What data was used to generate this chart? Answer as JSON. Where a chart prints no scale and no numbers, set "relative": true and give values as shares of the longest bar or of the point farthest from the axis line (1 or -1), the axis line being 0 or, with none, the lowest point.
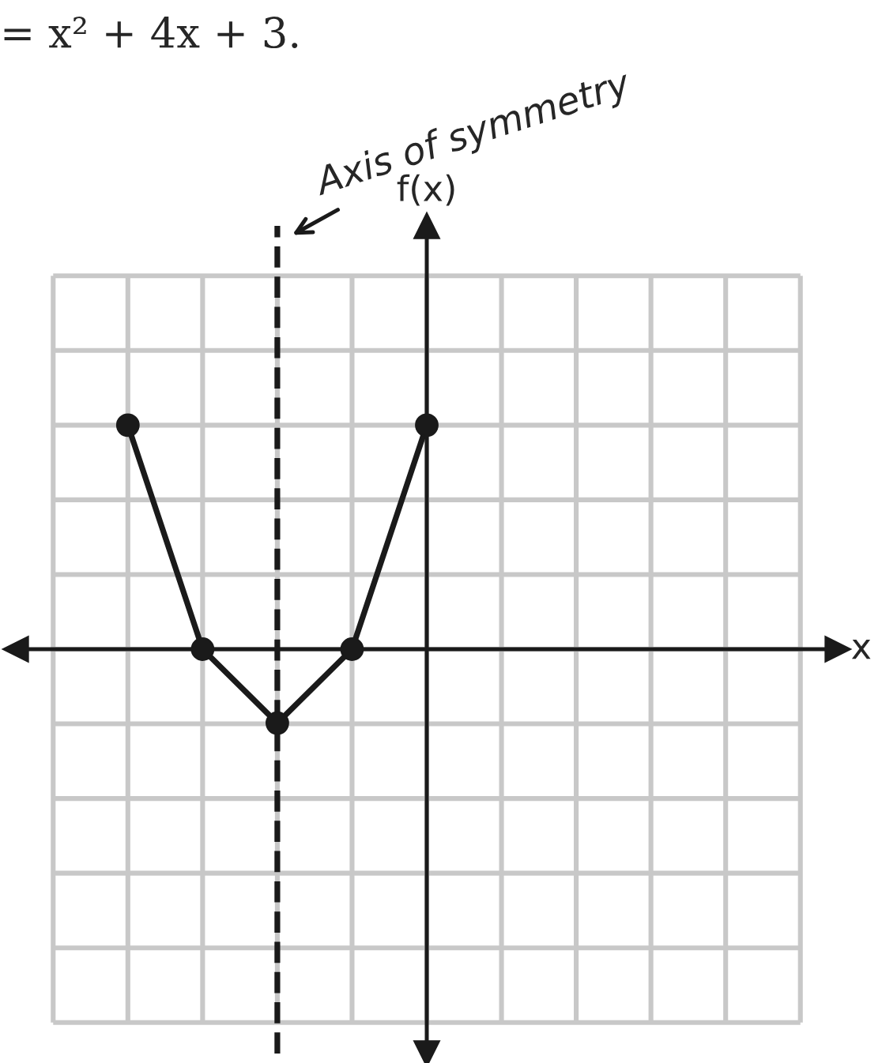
{
  "chart_data": {
    "type": "line",
    "title": "= x² + 4x + 3.",
    "annotations": [
      "x",
      "f(x)",
      "Axis of symmetry"
    ],
    "categories": [
      null,
      null,
      null,
      null,
      null
    ],
    "relative": true,
    "series": [
      {
        "color": "#1a1a1a",
        "values": [
          1,
          0,
          -0.33,
          0,
          1
        ]
      }
    ],
    "grid": true,
    "marker": "circle",
    "line_style": "solid",
    "legend": false
  }
}
